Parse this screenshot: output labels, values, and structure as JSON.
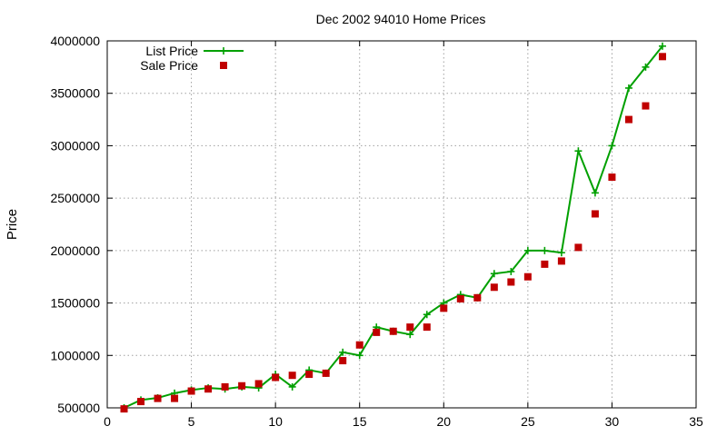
{
  "chart_data": {
    "type": "line",
    "title": "Dec 2002 94010 Home Prices",
    "xlabel": "",
    "ylabel": "Price",
    "xlim": [
      0,
      35
    ],
    "ylim": [
      500000,
      4000000
    ],
    "xticks": [
      0,
      5,
      10,
      15,
      20,
      25,
      30,
      35
    ],
    "yticks": [
      500000,
      1000000,
      1500000,
      2000000,
      2500000,
      3000000,
      3500000,
      4000000
    ],
    "grid": true,
    "legend_position": "top-left",
    "series": [
      {
        "name": "List Price",
        "style": "line-with-plus-markers",
        "color": "#00a000",
        "x": [
          1,
          2,
          3,
          4,
          5,
          6,
          7,
          8,
          9,
          10,
          11,
          12,
          13,
          14,
          15,
          16,
          17,
          18,
          19,
          20,
          21,
          22,
          23,
          24,
          25,
          26,
          27,
          28,
          29,
          30,
          31,
          32,
          33
        ],
        "y": [
          500000,
          575000,
          595000,
          640000,
          670000,
          690000,
          680000,
          700000,
          690000,
          820000,
          700000,
          860000,
          830000,
          1030000,
          1000000,
          1270000,
          1230000,
          1200000,
          1390000,
          1500000,
          1580000,
          1550000,
          1780000,
          1800000,
          2000000,
          2000000,
          1980000,
          2950000,
          2550000,
          3000000,
          3550000,
          3750000,
          3950000
        ]
      },
      {
        "name": "Sale Price",
        "style": "square-markers",
        "color": "#c00000",
        "x": [
          1,
          2,
          3,
          4,
          5,
          6,
          7,
          8,
          9,
          10,
          11,
          12,
          13,
          14,
          15,
          16,
          17,
          18,
          19,
          20,
          21,
          22,
          23,
          24,
          25,
          26,
          27,
          28,
          29,
          30,
          31,
          32,
          33
        ],
        "y": [
          490000,
          560000,
          590000,
          590000,
          660000,
          680000,
          700000,
          710000,
          730000,
          790000,
          810000,
          820000,
          830000,
          950000,
          1100000,
          1220000,
          1230000,
          1270000,
          1270000,
          1450000,
          1540000,
          1550000,
          1650000,
          1700000,
          1750000,
          1870000,
          1900000,
          2030000,
          2350000,
          2700000,
          3250000,
          3380000,
          3850000
        ]
      }
    ]
  }
}
